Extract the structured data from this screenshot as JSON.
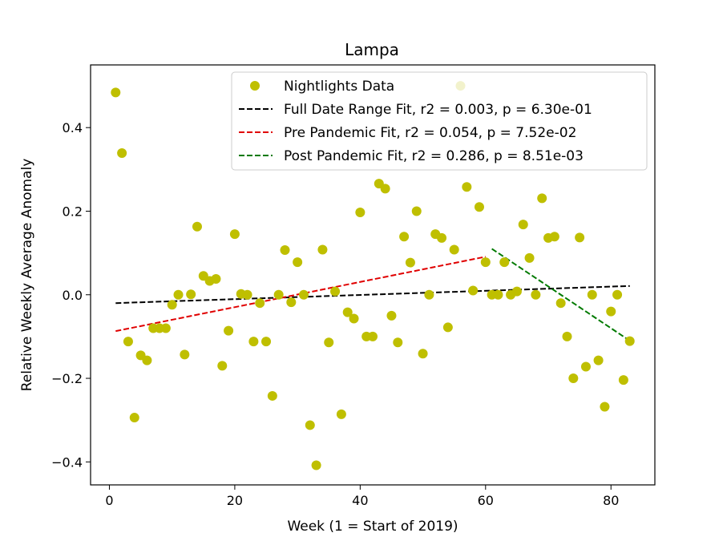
{
  "chart_data": {
    "type": "scatter",
    "title": "Lampa",
    "xlabel": "Week (1 = Start of 2019)",
    "ylabel": "Relative Weekly Average Anomaly",
    "xlim": [
      -3,
      87
    ],
    "ylim": [
      -0.455,
      0.55
    ],
    "xticks": [
      0,
      20,
      40,
      60,
      80
    ],
    "xtick_labels": [
      "0",
      "20",
      "40",
      "60",
      "80"
    ],
    "yticks": [
      -0.4,
      -0.2,
      0.0,
      0.2,
      0.4
    ],
    "ytick_labels": [
      "−0.4",
      "−0.2",
      "0.0",
      "0.2",
      "0.4"
    ],
    "grid": false,
    "legend_position": "top-right",
    "series": [
      {
        "name": "Nightlights Data",
        "kind": "scatter",
        "color": "#bfbf00",
        "points": [
          [
            1,
            0.484
          ],
          [
            2,
            0.339
          ],
          [
            3,
            -0.112
          ],
          [
            4,
            -0.294
          ],
          [
            5,
            -0.145
          ],
          [
            6,
            -0.157
          ],
          [
            7,
            -0.08
          ],
          [
            8,
            -0.08
          ],
          [
            9,
            -0.08
          ],
          [
            10,
            -0.024
          ],
          [
            11,
            0.0
          ],
          [
            12,
            -0.143
          ],
          [
            13,
            0.001
          ],
          [
            14,
            0.163
          ],
          [
            15,
            0.045
          ],
          [
            16,
            0.033
          ],
          [
            17,
            0.038
          ],
          [
            18,
            -0.17
          ],
          [
            19,
            -0.086
          ],
          [
            20,
            0.145
          ],
          [
            21,
            0.002
          ],
          [
            22,
            0.0
          ],
          [
            23,
            -0.112
          ],
          [
            24,
            -0.02
          ],
          [
            25,
            -0.112
          ],
          [
            26,
            -0.242
          ],
          [
            27,
            0.0
          ],
          [
            28,
            0.107
          ],
          [
            29,
            -0.018
          ],
          [
            30,
            0.078
          ],
          [
            31,
            0.0
          ],
          [
            32,
            -0.312
          ],
          [
            33,
            -0.408
          ],
          [
            34,
            0.108
          ],
          [
            35,
            -0.114
          ],
          [
            36,
            0.008
          ],
          [
            37,
            -0.286
          ],
          [
            38,
            -0.042
          ],
          [
            39,
            -0.057
          ],
          [
            40,
            0.197
          ],
          [
            41,
            -0.1
          ],
          [
            42,
            -0.1
          ],
          [
            43,
            0.266
          ],
          [
            44,
            0.254
          ],
          [
            45,
            -0.05
          ],
          [
            46,
            -0.114
          ],
          [
            47,
            0.139
          ],
          [
            48,
            0.077
          ],
          [
            49,
            0.2
          ],
          [
            50,
            -0.141
          ],
          [
            51,
            0.0
          ],
          [
            52,
            0.145
          ],
          [
            53,
            0.136
          ],
          [
            54,
            -0.078
          ],
          [
            55,
            0.108
          ],
          [
            56,
            0.5
          ],
          [
            57,
            0.258
          ],
          [
            58,
            0.01
          ],
          [
            59,
            0.21
          ],
          [
            60,
            0.078
          ],
          [
            61,
            0.0
          ],
          [
            62,
            0.0
          ],
          [
            63,
            0.078
          ],
          [
            64,
            0.0
          ],
          [
            65,
            0.008
          ],
          [
            66,
            0.168
          ],
          [
            67,
            0.088
          ],
          [
            68,
            0.0
          ],
          [
            69,
            0.231
          ],
          [
            70,
            0.136
          ],
          [
            71,
            0.139
          ],
          [
            72,
            -0.02
          ],
          [
            73,
            -0.1
          ],
          [
            74,
            -0.2
          ],
          [
            75,
            0.137
          ],
          [
            76,
            -0.172
          ],
          [
            77,
            0.0
          ],
          [
            78,
            -0.157
          ],
          [
            79,
            -0.268
          ],
          [
            80,
            -0.04
          ],
          [
            81,
            0.0
          ],
          [
            82,
            -0.204
          ],
          [
            83,
            -0.111
          ]
        ]
      },
      {
        "name": "Full Date Range Fit, r2 = 0.003, p = 6.30e-01",
        "kind": "line",
        "color": "#000000",
        "points": [
          [
            1,
            -0.02
          ],
          [
            83,
            0.021
          ]
        ]
      },
      {
        "name": "Pre Pandemic Fit, r2 = 0.054, p = 7.52e-02",
        "kind": "line",
        "color": "#e00000",
        "points": [
          [
            1,
            -0.087
          ],
          [
            60,
            0.091
          ]
        ]
      },
      {
        "name": "Post Pandemic Fit, r2 = 0.286, p = 8.51e-03",
        "kind": "line",
        "color": "#007a00",
        "points": [
          [
            61,
            0.11
          ],
          [
            83,
            -0.11
          ]
        ]
      }
    ]
  }
}
